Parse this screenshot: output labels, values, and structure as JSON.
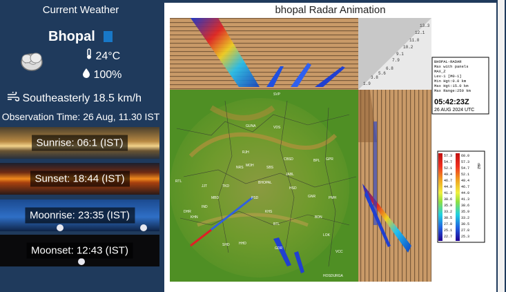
{
  "weather": {
    "section_title": "Current Weather",
    "city": "Bhopal",
    "temperature": "24",
    "temp_unit": "°C",
    "humidity": "100%",
    "wind": "Southeasterly 18.5 km/h",
    "observation": "Observation Time: 26 Aug, 11.30 IST",
    "icon": "cloudy-icon"
  },
  "astro": {
    "sunrise": "Sunrise: 06:1 (IST)",
    "sunset": "Sunset: 18:44 (IST)",
    "moonrise": "Moonrise: 23:35 (IST)",
    "moonset": "Moonset: 12:43 (IST)"
  },
  "radar": {
    "title": "bhopal Radar Animation",
    "info_lines": [
      "BHOPAL-RADAR",
      "Max with panels",
      "MAX_Z",
      "Lev-1 [M0-1]",
      "Min Hgt:0.0 km",
      "Max Hgt:15.0 km",
      "Max Range:250 km"
    ],
    "time": "05:42:23Z",
    "date": "26 AUG 2024 UTC",
    "scale_left": [
      "57.3",
      "54.7",
      "52.1",
      "49.4",
      "46.7",
      "44.0",
      "41.3",
      "38.6",
      "35.9",
      "33.2",
      "30.5",
      "27.8",
      "25.1",
      "22.7"
    ],
    "scale_right": [
      "60.0",
      "57.3",
      "54.7",
      "52.1",
      "49.4",
      "46.7",
      "44.0",
      "41.3",
      "38.6",
      "35.9",
      "33.2",
      "30.5",
      "27.8",
      "25.3"
    ],
    "scale_unit": "dBZ",
    "height_ticks": [
      "13.3",
      "12.1",
      "11.0",
      "10.2",
      "9.1",
      "7.9",
      "6.8",
      "5.6",
      "3.8",
      "1.9"
    ],
    "stations": [
      "SVP",
      "GUNA",
      "VDS",
      "RJH",
      "MOH",
      "SBS",
      "CBSD",
      "BPL",
      "BHOPAL",
      "TKD",
      "HSD",
      "JJT",
      "JABL",
      "GPR",
      "KHN",
      "NRS",
      "GNR",
      "MBD",
      "IND",
      "DHR",
      "SHD",
      "HHD",
      "RTL",
      "PSD",
      "KHS",
      "PMH",
      "BTL",
      "BDN",
      "HOSDURGA",
      "GDR",
      "LOK",
      "VCC"
    ]
  },
  "colors": {
    "left_bg": "#1f3a5c",
    "accent": "#1878c8"
  }
}
